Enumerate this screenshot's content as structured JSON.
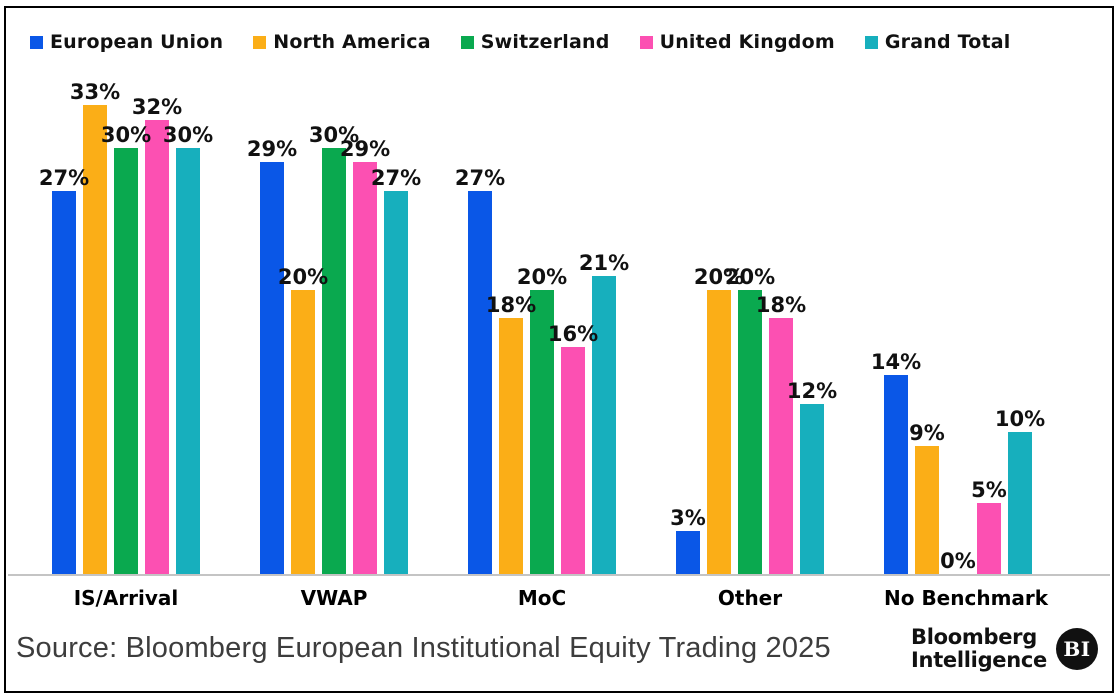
{
  "chart_data": {
    "type": "bar",
    "title": "",
    "categories": [
      "IS/Arrival",
      "VWAP",
      "MoC",
      "Other",
      "No Benchmark"
    ],
    "series": [
      {
        "name": "European Union",
        "color": "#0a57e7",
        "values": [
          27,
          29,
          27,
          3,
          14
        ]
      },
      {
        "name": "North America",
        "color": "#fbae17",
        "values": [
          33,
          20,
          18,
          20,
          9
        ]
      },
      {
        "name": "Switzerland",
        "color": "#0aa94f",
        "values": [
          30,
          30,
          20,
          20,
          0
        ]
      },
      {
        "name": "United Kingdom",
        "color": "#fc50b2",
        "values": [
          32,
          29,
          16,
          18,
          5
        ]
      },
      {
        "name": "Grand Total",
        "color": "#17afbd",
        "values": [
          30,
          27,
          21,
          12,
          10
        ]
      }
    ],
    "value_suffix": "%",
    "ylim": [
      0,
      35
    ],
    "grid": false,
    "legend_position": "top",
    "xlabel": "",
    "ylabel": ""
  },
  "footer": {
    "source_text": "Source: Bloomberg European Institutional Equity Trading 2025",
    "logo_line1": "Bloomberg",
    "logo_line2": "Intelligence",
    "logo_badge": "BI"
  }
}
